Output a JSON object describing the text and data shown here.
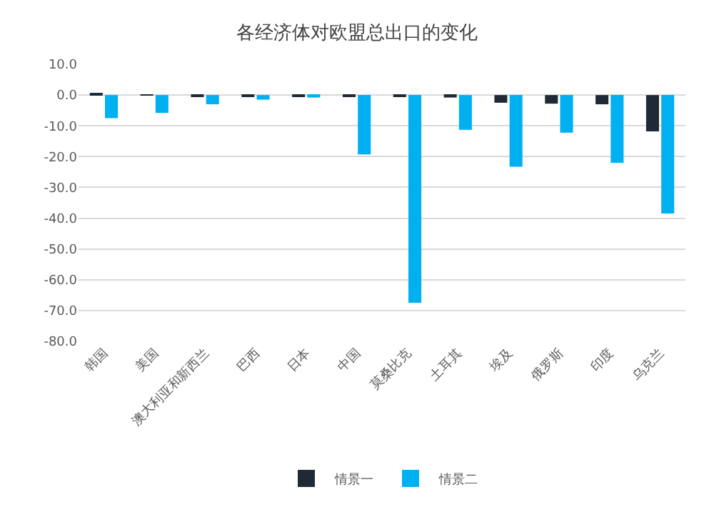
{
  "chart_data": {
    "type": "bar",
    "title": "各经济体对欧盟总出口的变化",
    "categories": [
      "韩国",
      "美国",
      "澳大利亚和新西兰",
      "巴西",
      "日本",
      "中国",
      "莫桑比克",
      "土耳其",
      "埃及",
      "俄罗斯",
      "印度",
      "乌克兰"
    ],
    "series": [
      {
        "name": "情景一",
        "color": "#1f2a36",
        "values": [
          0.3,
          0.2,
          -0.3,
          -0.3,
          -0.5,
          -0.5,
          -0.5,
          -0.8,
          -2.5,
          -2.8,
          -3.0,
          -11.8
        ]
      },
      {
        "name": "情景二",
        "color": "#00b0f0",
        "values": [
          -7.5,
          -5.8,
          -3.0,
          -1.5,
          -0.8,
          -19.3,
          -67.5,
          -11.3,
          -23.3,
          -12.2,
          -22.0,
          -38.5
        ]
      }
    ],
    "ylim": [
      -80,
      10
    ],
    "yticks": [
      {
        "value": 10,
        "label": "10.0"
      },
      {
        "value": 0,
        "label": "0.0"
      },
      {
        "value": -10,
        "label": "-10.0"
      },
      {
        "value": -20,
        "label": "-20.0"
      },
      {
        "value": -30,
        "label": "-30.0"
      },
      {
        "value": -40,
        "label": "-40.0"
      },
      {
        "value": -50,
        "label": "-50.0"
      },
      {
        "value": -60,
        "label": "-60.0"
      },
      {
        "value": -70,
        "label": "-70.0"
      },
      {
        "value": -80,
        "label": "-80.0"
      }
    ],
    "grid": "y",
    "legend": "bottom"
  }
}
